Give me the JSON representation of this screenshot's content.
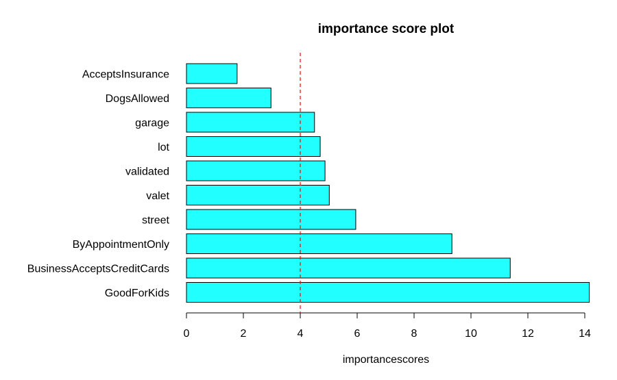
{
  "chart_data": {
    "type": "bar",
    "orientation": "horizontal",
    "title": "importance score plot",
    "xlabel": "importancescores",
    "ylabel": "",
    "categories": [
      "AcceptsInsurance",
      "DogsAllowed",
      "garage",
      "lot",
      "validated",
      "valet",
      "street",
      "ByAppointmentOnly",
      "BusinessAcceptsCreditCards",
      "GoodForKids"
    ],
    "values": [
      1.78,
      2.97,
      4.5,
      4.7,
      4.87,
      5.02,
      5.95,
      9.33,
      11.38,
      14.16
    ],
    "xlim": [
      0,
      14
    ],
    "xticks": [
      0,
      2,
      4,
      6,
      8,
      10,
      12,
      14
    ],
    "reference_line": {
      "x": 4,
      "style": "dashed"
    },
    "grid": false,
    "legend": "none"
  },
  "colors": {
    "bar_fill": "#22ffff",
    "bar_stroke": "#000000",
    "reference_line": "#ff0000"
  }
}
